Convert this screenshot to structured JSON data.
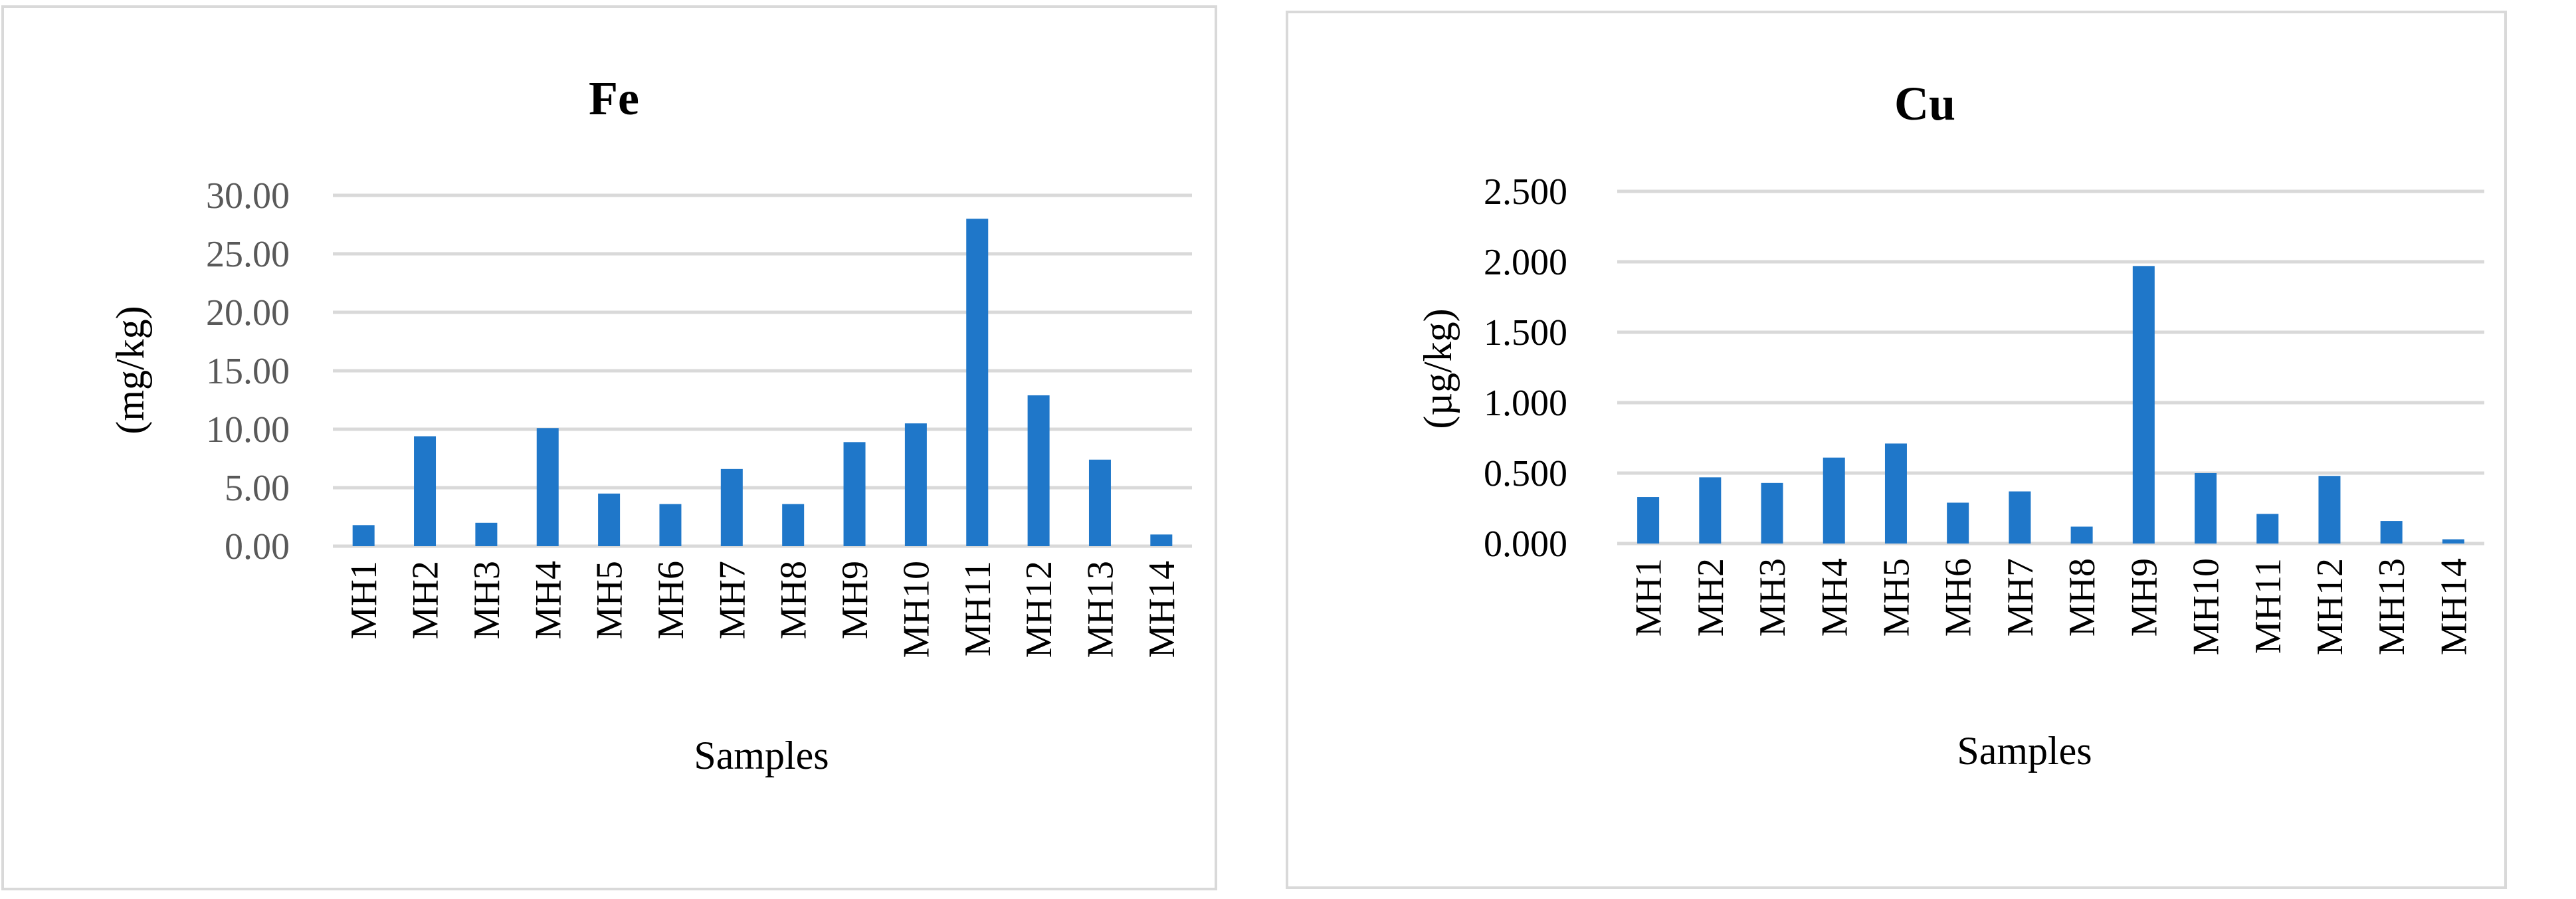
{
  "chart_data": [
    {
      "type": "bar",
      "title": "Fe",
      "xlabel": "Samples",
      "ylabel": "(mg/kg)",
      "categories": [
        "MH1",
        "MH2",
        "MH3",
        "MH4",
        "MH5",
        "MH6",
        "MH7",
        "MH8",
        "MH9",
        "MH10",
        "MH11",
        "MH12",
        "MH13",
        "MH14"
      ],
      "values": [
        1.8,
        9.4,
        2.0,
        10.1,
        4.5,
        3.6,
        6.6,
        3.6,
        8.9,
        10.5,
        28.0,
        12.9,
        7.4,
        1.0
      ],
      "ylim": [
        0,
        30
      ],
      "yticks": [
        "0.00",
        "5.00",
        "10.00",
        "15.00",
        "20.00",
        "25.00",
        "30.00"
      ],
      "bar_color": "#1f77c9",
      "grid": true,
      "legend": "none"
    },
    {
      "type": "bar",
      "title": "Cu",
      "xlabel": "Samples",
      "ylabel": "(µg/kg)",
      "categories": [
        "MH1",
        "MH2",
        "MH3",
        "MH4",
        "MH5",
        "MH6",
        "MH7",
        "MH8",
        "MH9",
        "MH10",
        "MH11",
        "MH12",
        "MH13",
        "MH14"
      ],
      "values": [
        0.33,
        0.47,
        0.43,
        0.61,
        0.71,
        0.29,
        0.37,
        0.12,
        1.97,
        0.5,
        0.21,
        0.48,
        0.16,
        0.03
      ],
      "ylim": [
        0,
        2.5
      ],
      "yticks": [
        "0.000",
        "0.500",
        "1.000",
        "1.500",
        "2.000",
        "2.500"
      ],
      "bar_color": "#1f77c9",
      "grid": true,
      "legend": "none"
    }
  ]
}
